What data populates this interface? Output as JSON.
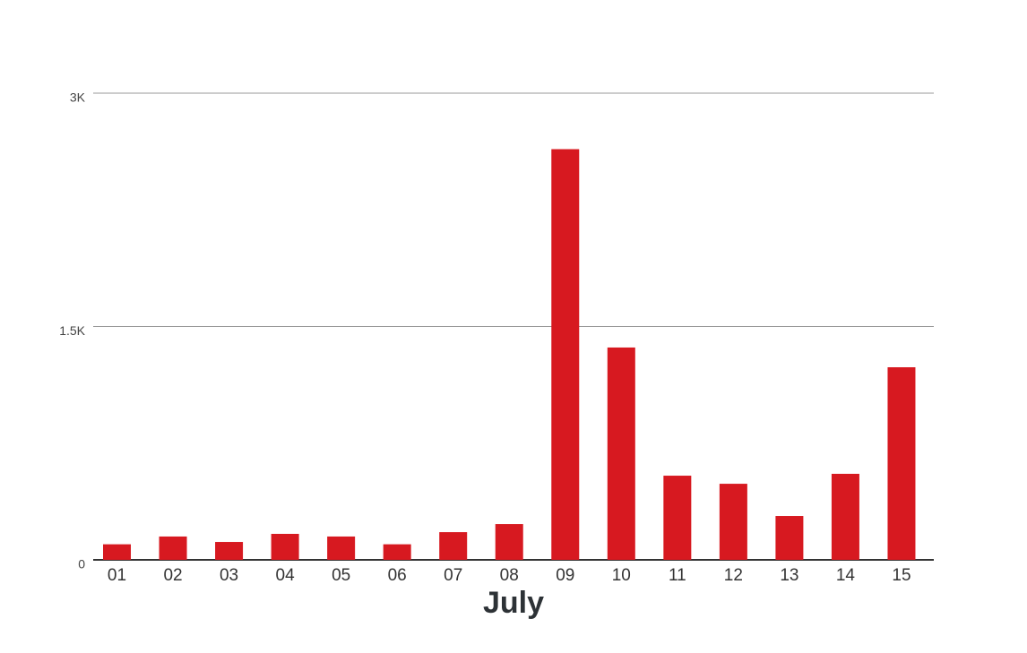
{
  "chart_data": {
    "type": "bar",
    "x_label": "July",
    "categories": [
      "01",
      "02",
      "03",
      "04",
      "05",
      "06",
      "07",
      "08",
      "09",
      "10",
      "11",
      "12",
      "13",
      "14",
      "15"
    ],
    "values": [
      100,
      150,
      115,
      167,
      150,
      100,
      178,
      230,
      2640,
      1365,
      541,
      489,
      282,
      553,
      1238
    ],
    "color": "#d71920",
    "ylim": [
      0,
      3000
    ],
    "yticks": [
      0,
      {
        "value": 1500,
        "label": "1.5K"
      },
      {
        "value": 3000,
        "label": "3K"
      }
    ],
    "grid": true
  }
}
